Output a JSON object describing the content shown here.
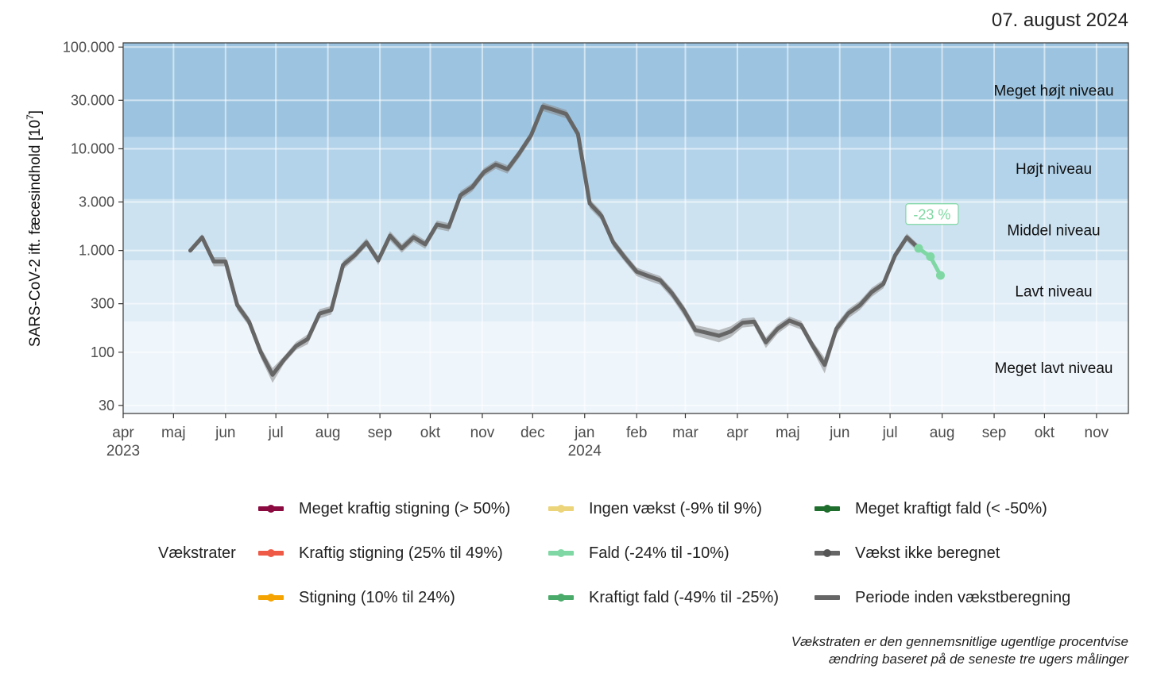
{
  "header": {
    "date": "07. august 2024"
  },
  "chart_data": {
    "type": "line",
    "title": "",
    "xlabel": "",
    "ylabel": "SARS-CoV-2 ift. fæcesindhold [10",
    "ylabel_exponent": "7",
    "ylabel_suffix": "]",
    "y_scale": "log10",
    "ylim": [
      25,
      110000
    ],
    "xlim": [
      "2023-04-01",
      "2024-11-20"
    ],
    "y_ticks": [
      30,
      100,
      300,
      1000,
      3000,
      10000,
      30000,
      100000
    ],
    "y_tick_labels": [
      "30",
      "100",
      "300",
      "1.000",
      "3.000",
      "10.000",
      "30.000",
      "100.000"
    ],
    "x_ticks": [
      {
        "date": "2023-04-01",
        "label": "apr",
        "year": "2023"
      },
      {
        "date": "2023-05-01",
        "label": "maj"
      },
      {
        "date": "2023-06-01",
        "label": "jun"
      },
      {
        "date": "2023-07-01",
        "label": "jul"
      },
      {
        "date": "2023-08-01",
        "label": "aug"
      },
      {
        "date": "2023-09-01",
        "label": "sep"
      },
      {
        "date": "2023-10-01",
        "label": "okt"
      },
      {
        "date": "2023-11-01",
        "label": "nov"
      },
      {
        "date": "2023-12-01",
        "label": "dec"
      },
      {
        "date": "2024-01-01",
        "label": "jan",
        "year": "2024"
      },
      {
        "date": "2024-02-01",
        "label": "feb"
      },
      {
        "date": "2024-03-01",
        "label": "mar"
      },
      {
        "date": "2024-04-01",
        "label": "apr"
      },
      {
        "date": "2024-05-01",
        "label": "maj"
      },
      {
        "date": "2024-06-01",
        "label": "jun"
      },
      {
        "date": "2024-07-01",
        "label": "jul"
      },
      {
        "date": "2024-08-01",
        "label": "aug"
      },
      {
        "date": "2024-09-01",
        "label": "sep"
      },
      {
        "date": "2024-10-01",
        "label": "okt"
      },
      {
        "date": "2024-11-01",
        "label": "nov"
      }
    ],
    "bands": [
      {
        "label": "Meget højt niveau",
        "from": 13000,
        "to": 110000,
        "color": "#9cc4e0"
      },
      {
        "label": "Højt niveau",
        "from": 3200,
        "to": 13000,
        "color": "#b3d3ea"
      },
      {
        "label": "Middel niveau",
        "from": 800,
        "to": 3200,
        "color": "#cce2f0"
      },
      {
        "label": "Lavt niveau",
        "from": 200,
        "to": 800,
        "color": "#e1edf7"
      },
      {
        "label": "Meget lavt niveau",
        "from": 25,
        "to": 200,
        "color": "#eef5fb"
      }
    ],
    "series": [
      {
        "name": "Periode inden vækstberegning",
        "color": "#666666",
        "x": [
          "2023-05-11",
          "2023-05-18",
          "2023-05-25",
          "2023-06-01",
          "2023-06-08",
          "2023-06-15",
          "2023-06-22",
          "2023-06-29",
          "2023-07-06",
          "2023-07-13",
          "2023-07-20",
          "2023-07-27",
          "2023-08-03",
          "2023-08-10",
          "2023-08-17",
          "2023-08-24",
          "2023-08-31",
          "2023-09-07",
          "2023-09-14",
          "2023-09-21",
          "2023-09-28",
          "2023-10-05",
          "2023-10-12",
          "2023-10-19",
          "2023-10-26",
          "2023-11-02",
          "2023-11-09",
          "2023-11-16",
          "2023-11-23",
          "2023-11-30",
          "2023-12-07",
          "2023-12-14",
          "2023-12-21",
          "2023-12-28",
          "2024-01-04",
          "2024-01-11",
          "2024-01-18",
          "2024-01-25",
          "2024-02-01",
          "2024-02-08",
          "2024-02-15",
          "2024-02-22",
          "2024-02-29",
          "2024-03-07",
          "2024-03-14",
          "2024-03-21",
          "2024-03-28",
          "2024-04-04",
          "2024-04-11",
          "2024-04-18",
          "2024-04-25",
          "2024-05-02",
          "2024-05-09",
          "2024-05-16",
          "2024-05-23",
          "2024-05-30",
          "2024-06-06",
          "2024-06-13",
          "2024-06-20",
          "2024-06-27",
          "2024-07-04",
          "2024-07-11",
          "2024-07-18"
        ],
        "values": [
          1000,
          1350,
          780,
          780,
          290,
          200,
          100,
          60,
          85,
          115,
          135,
          240,
          260,
          720,
          900,
          1200,
          800,
          1400,
          1050,
          1350,
          1150,
          1800,
          1700,
          3500,
          4200,
          5900,
          7000,
          6300,
          9000,
          13500,
          26000,
          24000,
          22000,
          14000,
          2900,
          2200,
          1200,
          850,
          620,
          560,
          510,
          380,
          260,
          165,
          155,
          145,
          160,
          195,
          200,
          125,
          170,
          205,
          185,
          115,
          75,
          170,
          240,
          290,
          390,
          470,
          900,
          1350,
          1050
        ],
        "ribbon_low": [
          950,
          1250,
          700,
          700,
          260,
          180,
          88,
          50,
          78,
          105,
          120,
          215,
          235,
          650,
          820,
          1100,
          720,
          1250,
          950,
          1220,
          1040,
          1630,
          1540,
          3150,
          3800,
          5350,
          6350,
          5700,
          8150,
          12200,
          23500,
          21700,
          19900,
          12700,
          2600,
          1980,
          1080,
          770,
          560,
          505,
          460,
          340,
          230,
          145,
          135,
          125,
          140,
          175,
          180,
          110,
          152,
          185,
          167,
          103,
          62,
          150,
          215,
          260,
          350,
          425,
          820,
          1230,
          960
        ],
        "ribbon_high": [
          1060,
          1450,
          860,
          860,
          320,
          220,
          112,
          70,
          92,
          126,
          150,
          265,
          285,
          790,
          980,
          1320,
          880,
          1550,
          1160,
          1480,
          1260,
          1970,
          1860,
          3850,
          4600,
          6450,
          7650,
          6900,
          9850,
          14800,
          28500,
          26300,
          24100,
          15300,
          3200,
          2420,
          1320,
          935,
          680,
          615,
          560,
          420,
          290,
          185,
          175,
          165,
          180,
          215,
          220,
          140,
          188,
          225,
          203,
          127,
          88,
          190,
          265,
          320,
          430,
          515,
          980,
          1470,
          1140
        ]
      },
      {
        "name": "Fald (-24% til -10%)",
        "color": "#7fd8a3",
        "x": [
          "2024-07-18",
          "2024-07-25",
          "2024-07-31"
        ],
        "values": [
          1050,
          870,
          570
        ]
      }
    ],
    "annotations": [
      {
        "text": "-23 %",
        "x": "2024-07-26",
        "y": 2280,
        "color": "#7fd8a3"
      }
    ]
  },
  "legend": {
    "title": "Vækstrater",
    "items": [
      {
        "label": "Meget kraftig stigning (> 50%)",
        "color": "#8b0a3f",
        "dot": true
      },
      {
        "label": "Kraftig stigning (25% til 49%)",
        "color": "#ee5a45",
        "dot": true
      },
      {
        "label": "Stigning (10% til 24%)",
        "color": "#f5a300",
        "dot": true
      },
      {
        "label": "Ingen vækst (-9% til 9%)",
        "color": "#ebd47a",
        "dot": true
      },
      {
        "label": "Fald (-24% til -10%)",
        "color": "#7fd8a3",
        "dot": true
      },
      {
        "label": "Kraftigt fald (-49% til -25%)",
        "color": "#4aaa6a",
        "dot": true
      },
      {
        "label": "Meget kraftigt fald (< -50%)",
        "color": "#1f6e2e",
        "dot": true
      },
      {
        "label": "Vækst ikke beregnet",
        "color": "#666666",
        "dot": true
      },
      {
        "label": "Periode inden vækstberegning",
        "color": "#666666",
        "dot": false
      }
    ]
  },
  "caption": {
    "line1": "Vækstraten er den gennemsnitlige ugentlige procentvise",
    "line2": "ændring baseret på de seneste tre ugers målinger"
  }
}
